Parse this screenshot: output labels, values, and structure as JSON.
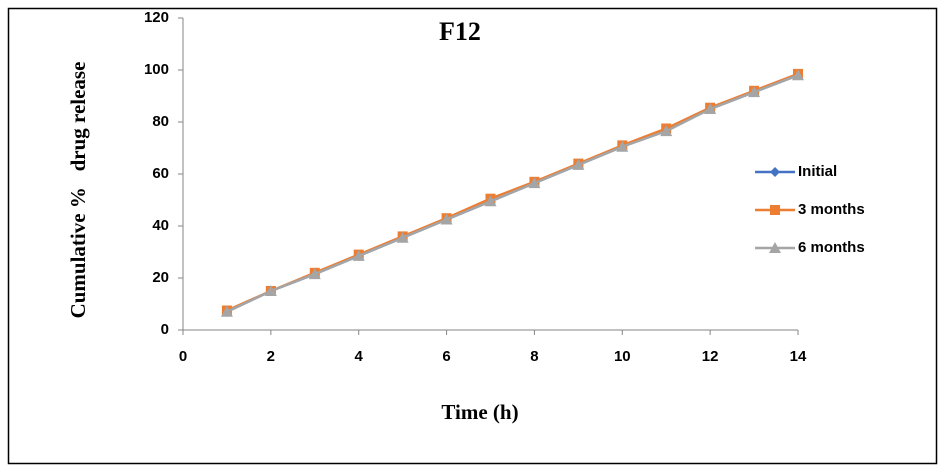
{
  "chart_data": {
    "type": "line",
    "title": "F12",
    "x_label": "Time (h)",
    "y_label": "Cumulative %   drug release",
    "x": [
      1,
      2,
      3,
      4,
      5,
      6,
      7,
      8,
      9,
      10,
      11,
      12,
      13,
      14
    ],
    "series": [
      {
        "name": "Initial",
        "color": "#4472c4",
        "marker": "diamond",
        "values": [
          7,
          15,
          21.5,
          28.5,
          35.5,
          42.5,
          49.5,
          56.5,
          63.5,
          70.5,
          77,
          85,
          91.5,
          98
        ]
      },
      {
        "name": "3 months",
        "color": "#ed7d31",
        "marker": "square",
        "values": [
          7.5,
          15,
          22,
          29,
          36,
          43,
          50.5,
          57,
          64,
          71,
          77.5,
          85.5,
          92,
          98.5
        ]
      },
      {
        "name": "6 months",
        "color": "#a5a5a5",
        "marker": "triangle",
        "values": [
          7,
          15,
          21.5,
          28.5,
          35.5,
          42.5,
          49.5,
          56.5,
          63.5,
          70.5,
          76.5,
          85,
          91.5,
          98
        ]
      }
    ],
    "xlim": [
      0,
      14
    ],
    "xticks": [
      0,
      2,
      4,
      6,
      8,
      10,
      12,
      14
    ],
    "ylim": [
      0,
      120
    ],
    "yticks": [
      0,
      20,
      40,
      60,
      80,
      100,
      120
    ]
  }
}
